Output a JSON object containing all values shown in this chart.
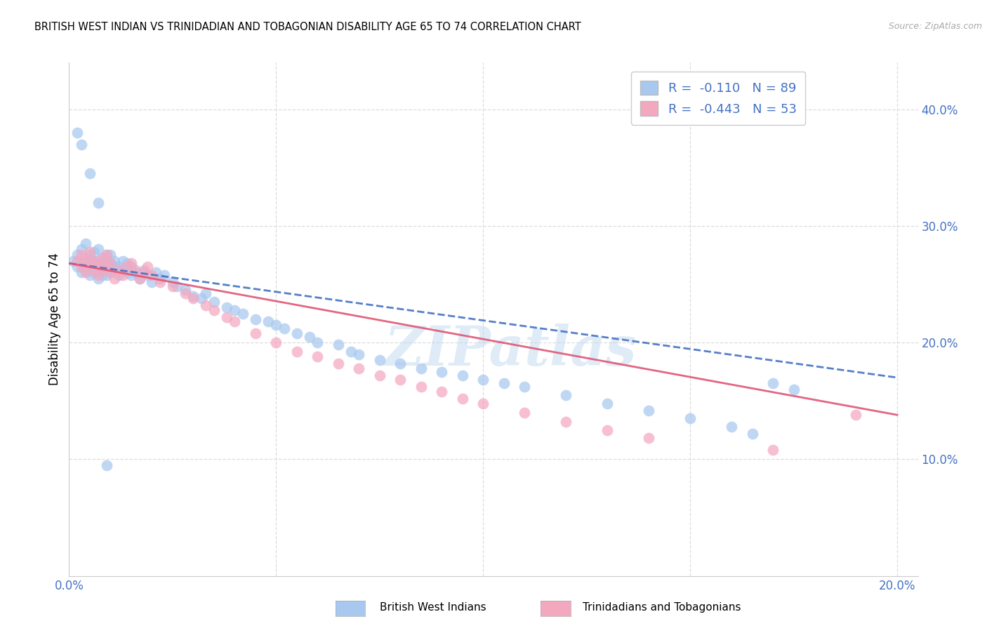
{
  "title": "BRITISH WEST INDIAN VS TRINIDADIAN AND TOBAGONIAN DISABILITY AGE 65 TO 74 CORRELATION CHART",
  "source": "Source: ZipAtlas.com",
  "ylabel": "Disability Age 65 to 74",
  "xlim": [
    0.0,
    0.205
  ],
  "ylim": [
    0.0,
    0.44
  ],
  "blue_color": "#A8C8F0",
  "pink_color": "#F4A8C0",
  "blue_line_color": "#4472C4",
  "pink_line_color": "#E05575",
  "legend_r1": "R =  -0.110",
  "legend_n1": "N = 89",
  "legend_r2": "R =  -0.443",
  "legend_n2": "N = 53",
  "legend_label1": "British West Indians",
  "legend_label2": "Trinidadians and Tobagonians",
  "watermark": "ZIPatlas",
  "blue_line": [
    0.0,
    0.268,
    0.2,
    0.17
  ],
  "pink_line": [
    0.0,
    0.268,
    0.2,
    0.138
  ],
  "blue_x": [
    0.001,
    0.002,
    0.002,
    0.003,
    0.003,
    0.003,
    0.004,
    0.004,
    0.004,
    0.005,
    0.005,
    0.005,
    0.005,
    0.006,
    0.006,
    0.006,
    0.007,
    0.007,
    0.007,
    0.007,
    0.008,
    0.008,
    0.008,
    0.008,
    0.009,
    0.009,
    0.009,
    0.01,
    0.01,
    0.01,
    0.011,
    0.011,
    0.012,
    0.012,
    0.013,
    0.013,
    0.014,
    0.014,
    0.015,
    0.015,
    0.016,
    0.017,
    0.018,
    0.019,
    0.02,
    0.021,
    0.022,
    0.023,
    0.025,
    0.026,
    0.028,
    0.03,
    0.032,
    0.033,
    0.035,
    0.038,
    0.04,
    0.042,
    0.045,
    0.048,
    0.05,
    0.052,
    0.055,
    0.058,
    0.06,
    0.065,
    0.068,
    0.07,
    0.075,
    0.08,
    0.085,
    0.09,
    0.095,
    0.1,
    0.105,
    0.11,
    0.12,
    0.13,
    0.14,
    0.15,
    0.16,
    0.165,
    0.17,
    0.175,
    0.002,
    0.003,
    0.005,
    0.007,
    0.009
  ],
  "blue_y": [
    0.27,
    0.265,
    0.275,
    0.26,
    0.268,
    0.28,
    0.262,
    0.27,
    0.285,
    0.258,
    0.265,
    0.272,
    0.275,
    0.26,
    0.268,
    0.278,
    0.255,
    0.265,
    0.27,
    0.28,
    0.258,
    0.265,
    0.272,
    0.262,
    0.258,
    0.268,
    0.275,
    0.262,
    0.268,
    0.275,
    0.265,
    0.27,
    0.258,
    0.265,
    0.262,
    0.27,
    0.26,
    0.268,
    0.258,
    0.265,
    0.26,
    0.255,
    0.262,
    0.258,
    0.252,
    0.26,
    0.255,
    0.258,
    0.252,
    0.248,
    0.245,
    0.24,
    0.238,
    0.242,
    0.235,
    0.23,
    0.228,
    0.225,
    0.22,
    0.218,
    0.215,
    0.212,
    0.208,
    0.205,
    0.2,
    0.198,
    0.192,
    0.19,
    0.185,
    0.182,
    0.178,
    0.175,
    0.172,
    0.168,
    0.165,
    0.162,
    0.155,
    0.148,
    0.142,
    0.135,
    0.128,
    0.122,
    0.165,
    0.16,
    0.38,
    0.37,
    0.345,
    0.32,
    0.095
  ],
  "pink_x": [
    0.002,
    0.003,
    0.003,
    0.004,
    0.004,
    0.005,
    0.005,
    0.006,
    0.006,
    0.007,
    0.007,
    0.008,
    0.008,
    0.009,
    0.009,
    0.01,
    0.01,
    0.011,
    0.012,
    0.013,
    0.014,
    0.015,
    0.016,
    0.017,
    0.018,
    0.019,
    0.02,
    0.022,
    0.025,
    0.028,
    0.03,
    0.033,
    0.035,
    0.038,
    0.04,
    0.045,
    0.05,
    0.055,
    0.06,
    0.065,
    0.07,
    0.075,
    0.08,
    0.085,
    0.09,
    0.095,
    0.1,
    0.11,
    0.12,
    0.13,
    0.14,
    0.17,
    0.19
  ],
  "pink_y": [
    0.27,
    0.265,
    0.275,
    0.26,
    0.272,
    0.268,
    0.278,
    0.262,
    0.27,
    0.258,
    0.268,
    0.262,
    0.272,
    0.265,
    0.275,
    0.26,
    0.268,
    0.255,
    0.262,
    0.258,
    0.265,
    0.268,
    0.262,
    0.255,
    0.26,
    0.265,
    0.258,
    0.252,
    0.248,
    0.242,
    0.238,
    0.232,
    0.228,
    0.222,
    0.218,
    0.208,
    0.2,
    0.192,
    0.188,
    0.182,
    0.178,
    0.172,
    0.168,
    0.162,
    0.158,
    0.152,
    0.148,
    0.14,
    0.132,
    0.125,
    0.118,
    0.108,
    0.138
  ]
}
